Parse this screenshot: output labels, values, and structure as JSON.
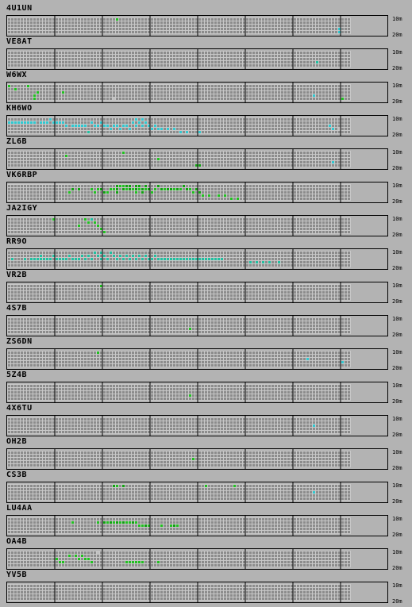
{
  "bands": {
    "top": "10m",
    "bottom": "20m"
  },
  "colors": {
    "background": "#b3b3b3",
    "empty_cell": "#8c8c8c",
    "cell_line": "#c8c8c8",
    "divider": "#000000",
    "green": "#20c020",
    "dark_green": "#10a010",
    "teal": "#20c0a0",
    "cyan": "#30c8d0",
    "light": "#c0c0c0"
  },
  "stations": [
    {
      "name": "4U1UN",
      "cells": [
        [
          34,
          0,
          "green"
        ],
        [
          104,
          3,
          "cyan"
        ],
        [
          104,
          4,
          "cyan"
        ]
      ]
    },
    {
      "name": "VE8AT",
      "cells": [
        [
          97,
          3,
          "teal"
        ]
      ]
    },
    {
      "name": "W6WX",
      "cells": [
        [
          0,
          0,
          "green"
        ],
        [
          6,
          0,
          "green"
        ],
        [
          2,
          1,
          "green"
        ],
        [
          9,
          2,
          "green"
        ],
        [
          17,
          2,
          "green"
        ],
        [
          33,
          4,
          "light"
        ],
        [
          8,
          3,
          "green"
        ],
        [
          8,
          4,
          "green"
        ],
        [
          96,
          3,
          "cyan"
        ],
        [
          105,
          4,
          "green"
        ]
      ]
    },
    {
      "name": "KH6WO",
      "cells": [
        [
          0,
          1,
          "cyan"
        ],
        [
          1,
          1,
          "cyan"
        ],
        [
          2,
          1,
          "cyan"
        ],
        [
          3,
          1,
          "cyan"
        ],
        [
          4,
          1,
          "cyan"
        ],
        [
          5,
          1,
          "cyan"
        ],
        [
          6,
          1,
          "cyan"
        ],
        [
          7,
          1,
          "cyan"
        ],
        [
          8,
          1,
          "cyan"
        ],
        [
          10,
          1,
          "cyan"
        ],
        [
          11,
          1,
          "cyan"
        ],
        [
          12,
          1,
          "cyan"
        ],
        [
          13,
          0,
          "cyan"
        ],
        [
          14,
          1,
          "cyan"
        ],
        [
          15,
          1,
          "cyan"
        ],
        [
          16,
          1,
          "cyan"
        ],
        [
          17,
          1,
          "cyan"
        ],
        [
          18,
          2,
          "cyan"
        ],
        [
          20,
          2,
          "cyan"
        ],
        [
          21,
          2,
          "cyan"
        ],
        [
          22,
          2,
          "cyan"
        ],
        [
          23,
          2,
          "cyan"
        ],
        [
          24,
          2,
          "cyan"
        ],
        [
          26,
          1,
          "cyan"
        ],
        [
          27,
          2,
          "cyan"
        ],
        [
          28,
          2,
          "cyan"
        ],
        [
          29,
          1,
          "cyan"
        ],
        [
          30,
          2,
          "cyan"
        ],
        [
          31,
          2,
          "cyan"
        ],
        [
          32,
          3,
          "cyan"
        ],
        [
          33,
          2,
          "cyan"
        ],
        [
          34,
          2,
          "cyan"
        ],
        [
          35,
          3,
          "cyan"
        ],
        [
          36,
          2,
          "cyan"
        ],
        [
          37,
          2,
          "cyan"
        ],
        [
          38,
          3,
          "cyan"
        ],
        [
          39,
          1,
          "cyan"
        ],
        [
          40,
          0,
          "cyan"
        ],
        [
          40,
          2,
          "cyan"
        ],
        [
          41,
          1,
          "cyan"
        ],
        [
          42,
          0,
          "cyan"
        ],
        [
          42,
          2,
          "cyan"
        ],
        [
          43,
          1,
          "cyan"
        ],
        [
          44,
          2,
          "cyan"
        ],
        [
          45,
          3,
          "cyan"
        ],
        [
          46,
          2,
          "cyan"
        ],
        [
          47,
          3,
          "cyan"
        ],
        [
          48,
          3,
          "cyan"
        ],
        [
          50,
          3,
          "cyan"
        ],
        [
          52,
          3,
          "cyan"
        ],
        [
          54,
          4,
          "cyan"
        ],
        [
          56,
          4,
          "cyan"
        ],
        [
          60,
          4,
          "cyan"
        ],
        [
          25,
          4,
          "teal"
        ],
        [
          102,
          3,
          "cyan"
        ],
        [
          104,
          3,
          "light"
        ],
        [
          101,
          2,
          "cyan"
        ]
      ]
    },
    {
      "name": "ZL6B",
      "cells": [
        [
          18,
          1,
          "green"
        ],
        [
          36,
          0,
          "green"
        ],
        [
          47,
          2,
          "green"
        ],
        [
          59,
          4,
          "dark_green"
        ],
        [
          60,
          4,
          "dark_green"
        ],
        [
          102,
          3,
          "cyan"
        ]
      ]
    },
    {
      "name": "VK6RBP",
      "cells": [
        [
          20,
          1,
          "dark_green"
        ],
        [
          19,
          2,
          "green"
        ],
        [
          22,
          1,
          "dark_green"
        ],
        [
          26,
          1,
          "green"
        ],
        [
          27,
          2,
          "green"
        ],
        [
          28,
          1,
          "green"
        ],
        [
          29,
          1,
          "dark_green"
        ],
        [
          30,
          2,
          "dark_green"
        ],
        [
          31,
          2,
          "green"
        ],
        [
          32,
          1,
          "green"
        ],
        [
          33,
          1,
          "green"
        ],
        [
          34,
          0,
          "dark_green"
        ],
        [
          34,
          1,
          "dark_green"
        ],
        [
          34,
          2,
          "dark_green"
        ],
        [
          35,
          0,
          "green"
        ],
        [
          36,
          0,
          "green"
        ],
        [
          36,
          1,
          "dark_green"
        ],
        [
          37,
          0,
          "dark_green"
        ],
        [
          37,
          1,
          "green"
        ],
        [
          38,
          0,
          "dark_green"
        ],
        [
          38,
          1,
          "dark_green"
        ],
        [
          39,
          1,
          "green"
        ],
        [
          40,
          0,
          "dark_green"
        ],
        [
          40,
          1,
          "dark_green"
        ],
        [
          40,
          2,
          "green"
        ],
        [
          41,
          0,
          "dark_green"
        ],
        [
          41,
          1,
          "green"
        ],
        [
          42,
          1,
          "dark_green"
        ],
        [
          42,
          2,
          "dark_green"
        ],
        [
          43,
          0,
          "dark_green"
        ],
        [
          43,
          1,
          "green"
        ],
        [
          44,
          1,
          "dark_green"
        ],
        [
          45,
          2,
          "green"
        ],
        [
          46,
          1,
          "green"
        ],
        [
          47,
          0,
          "dark_green"
        ],
        [
          48,
          1,
          "dark_green"
        ],
        [
          49,
          1,
          "green"
        ],
        [
          50,
          1,
          "dark_green"
        ],
        [
          51,
          1,
          "dark_green"
        ],
        [
          52,
          1,
          "green"
        ],
        [
          53,
          1,
          "dark_green"
        ],
        [
          54,
          1,
          "green"
        ],
        [
          55,
          0,
          "dark_green"
        ],
        [
          56,
          1,
          "dark_green"
        ],
        [
          57,
          1,
          "green"
        ],
        [
          58,
          2,
          "green"
        ],
        [
          59,
          1,
          "dark_green"
        ],
        [
          60,
          2,
          "dark_green"
        ],
        [
          61,
          3,
          "green"
        ],
        [
          63,
          3,
          "green"
        ],
        [
          66,
          3,
          "green"
        ],
        [
          68,
          3,
          "green"
        ],
        [
          70,
          4,
          "green"
        ],
        [
          72,
          4,
          "green"
        ]
      ]
    },
    {
      "name": "JA2IGY",
      "cells": [
        [
          14,
          0,
          "green"
        ],
        [
          24,
          0,
          "green"
        ],
        [
          25,
          1,
          "green"
        ],
        [
          26,
          0,
          "teal"
        ],
        [
          27,
          1,
          "green"
        ],
        [
          22,
          2,
          "green"
        ],
        [
          28,
          2,
          "green"
        ],
        [
          29,
          3,
          "green"
        ],
        [
          30,
          4,
          "green"
        ]
      ]
    },
    {
      "name": "RR9O",
      "cells": [
        [
          1,
          2,
          "teal"
        ],
        [
          5,
          2,
          "teal"
        ],
        [
          7,
          2,
          "teal"
        ],
        [
          8,
          2,
          "teal"
        ],
        [
          9,
          2,
          "teal"
        ],
        [
          10,
          1,
          "teal"
        ],
        [
          10,
          2,
          "teal"
        ],
        [
          11,
          2,
          "teal"
        ],
        [
          12,
          2,
          "teal"
        ],
        [
          13,
          2,
          "teal"
        ],
        [
          14,
          1,
          "teal"
        ],
        [
          15,
          2,
          "teal"
        ],
        [
          16,
          2,
          "teal"
        ],
        [
          17,
          2,
          "teal"
        ],
        [
          18,
          2,
          "teal"
        ],
        [
          19,
          1,
          "teal"
        ],
        [
          20,
          2,
          "teal"
        ],
        [
          21,
          2,
          "teal"
        ],
        [
          22,
          2,
          "teal"
        ],
        [
          23,
          1,
          "teal"
        ],
        [
          24,
          2,
          "teal"
        ],
        [
          25,
          1,
          "teal"
        ],
        [
          26,
          2,
          "teal"
        ],
        [
          27,
          0,
          "teal"
        ],
        [
          28,
          1,
          "teal"
        ],
        [
          29,
          0,
          "teal"
        ],
        [
          29,
          2,
          "teal"
        ],
        [
          30,
          1,
          "teal"
        ],
        [
          31,
          2,
          "teal"
        ],
        [
          32,
          0,
          "teal"
        ],
        [
          33,
          1,
          "teal"
        ],
        [
          34,
          2,
          "teal"
        ],
        [
          35,
          1,
          "teal"
        ],
        [
          36,
          2,
          "teal"
        ],
        [
          37,
          1,
          "teal"
        ],
        [
          38,
          2,
          "teal"
        ],
        [
          39,
          1,
          "teal"
        ],
        [
          40,
          2,
          "teal"
        ],
        [
          41,
          1,
          "teal"
        ],
        [
          42,
          2,
          "teal"
        ],
        [
          43,
          1,
          "teal"
        ],
        [
          44,
          2,
          "teal"
        ],
        [
          45,
          2,
          "teal"
        ],
        [
          46,
          1,
          "teal"
        ],
        [
          47,
          2,
          "teal"
        ],
        [
          48,
          2,
          "teal"
        ],
        [
          49,
          2,
          "teal"
        ],
        [
          50,
          2,
          "teal"
        ],
        [
          51,
          2,
          "teal"
        ],
        [
          52,
          2,
          "teal"
        ],
        [
          53,
          2,
          "teal"
        ],
        [
          54,
          2,
          "teal"
        ],
        [
          55,
          2,
          "teal"
        ],
        [
          56,
          2,
          "teal"
        ],
        [
          57,
          2,
          "teal"
        ],
        [
          58,
          2,
          "teal"
        ],
        [
          59,
          2,
          "teal"
        ],
        [
          60,
          2,
          "teal"
        ],
        [
          61,
          2,
          "teal"
        ],
        [
          62,
          2,
          "teal"
        ],
        [
          63,
          2,
          "teal"
        ],
        [
          64,
          2,
          "teal"
        ],
        [
          65,
          2,
          "teal"
        ],
        [
          66,
          2,
          "teal"
        ],
        [
          67,
          2,
          "teal"
        ],
        [
          76,
          3,
          "teal"
        ],
        [
          78,
          3,
          "teal"
        ],
        [
          80,
          3,
          "teal"
        ],
        [
          82,
          3,
          "teal"
        ],
        [
          85,
          3,
          "teal"
        ]
      ]
    },
    {
      "name": "VR2B",
      "cells": [
        [
          29,
          0,
          "green"
        ]
      ]
    },
    {
      "name": "4S7B",
      "cells": [
        [
          57,
          3,
          "green"
        ]
      ]
    },
    {
      "name": "ZS6DN",
      "cells": [
        [
          28,
          0,
          "green"
        ],
        [
          94,
          2,
          "cyan"
        ],
        [
          105,
          3,
          "cyan"
        ]
      ]
    },
    {
      "name": "5Z4B",
      "cells": [
        [
          57,
          3,
          "green"
        ]
      ]
    },
    {
      "name": "4X6TU",
      "cells": [
        [
          96,
          2,
          "cyan"
        ]
      ]
    },
    {
      "name": "OH2B",
      "cells": [
        [
          58,
          2,
          "green"
        ]
      ]
    },
    {
      "name": "CS3B",
      "cells": [
        [
          33,
          0,
          "dark_green"
        ],
        [
          34,
          0,
          "green"
        ],
        [
          36,
          0,
          "dark_green"
        ],
        [
          62,
          0,
          "green"
        ],
        [
          71,
          0,
          "green"
        ],
        [
          96,
          2,
          "cyan"
        ]
      ]
    },
    {
      "name": "LU4AA",
      "cells": [
        [
          20,
          1,
          "green"
        ],
        [
          28,
          1,
          "green"
        ],
        [
          30,
          1,
          "dark_green"
        ],
        [
          31,
          1,
          "green"
        ],
        [
          32,
          1,
          "dark_green"
        ],
        [
          33,
          1,
          "green"
        ],
        [
          34,
          1,
          "dark_green"
        ],
        [
          35,
          1,
          "green"
        ],
        [
          36,
          1,
          "dark_green"
        ],
        [
          37,
          1,
          "green"
        ],
        [
          38,
          1,
          "green"
        ],
        [
          39,
          1,
          "dark_green"
        ],
        [
          40,
          1,
          "green"
        ],
        [
          41,
          2,
          "green"
        ],
        [
          42,
          2,
          "green"
        ],
        [
          43,
          2,
          "dark_green"
        ],
        [
          44,
          2,
          "green"
        ],
        [
          48,
          2,
          "green"
        ],
        [
          51,
          2,
          "green"
        ],
        [
          52,
          2,
          "dark_green"
        ],
        [
          53,
          2,
          "green"
        ]
      ]
    },
    {
      "name": "OA4B",
      "cells": [
        [
          28,
          0,
          "light"
        ],
        [
          19,
          1,
          "green"
        ],
        [
          21,
          1,
          "green"
        ],
        [
          22,
          2,
          "green"
        ],
        [
          23,
          1,
          "green"
        ],
        [
          24,
          2,
          "green"
        ],
        [
          25,
          2,
          "green"
        ],
        [
          26,
          3,
          "green"
        ],
        [
          15,
          2,
          "green"
        ],
        [
          16,
          3,
          "green"
        ],
        [
          17,
          3,
          "green"
        ],
        [
          37,
          3,
          "green"
        ],
        [
          38,
          3,
          "green"
        ],
        [
          39,
          3,
          "green"
        ],
        [
          40,
          3,
          "green"
        ],
        [
          41,
          3,
          "green"
        ],
        [
          42,
          3,
          "green"
        ],
        [
          47,
          3,
          "green"
        ]
      ]
    },
    {
      "name": "YV5B",
      "cells": []
    }
  ]
}
